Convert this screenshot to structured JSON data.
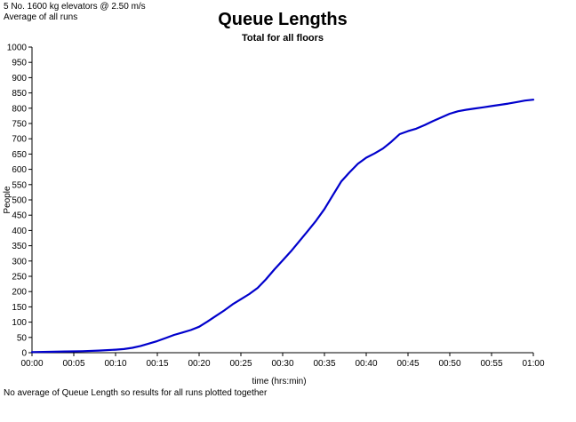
{
  "header": {
    "note_line1": "5 No. 1600 kg elevators @ 2.50 m/s",
    "note_line2": "Average of all runs"
  },
  "footer": {
    "note": "No average of Queue Length so results for all runs plotted together"
  },
  "chart_data": {
    "type": "line",
    "title": "Queue Lengths",
    "subtitle": "Total for all floors",
    "xlabel": "time (hrs:min)",
    "ylabel": "People",
    "xlim": [
      0,
      60
    ],
    "ylim": [
      0,
      1000
    ],
    "grid": false,
    "legend": "none",
    "x_ticks": [
      {
        "value": 0,
        "label": "00:00"
      },
      {
        "value": 5,
        "label": "00:05"
      },
      {
        "value": 10,
        "label": "00:10"
      },
      {
        "value": 15,
        "label": "00:15"
      },
      {
        "value": 20,
        "label": "00:20"
      },
      {
        "value": 25,
        "label": "00:25"
      },
      {
        "value": 30,
        "label": "00:30"
      },
      {
        "value": 35,
        "label": "00:35"
      },
      {
        "value": 40,
        "label": "00:40"
      },
      {
        "value": 45,
        "label": "00:45"
      },
      {
        "value": 50,
        "label": "00:50"
      },
      {
        "value": 55,
        "label": "00:55"
      },
      {
        "value": 60,
        "label": "01:00"
      }
    ],
    "y_ticks": [
      0,
      50,
      100,
      150,
      200,
      250,
      300,
      350,
      400,
      450,
      500,
      550,
      600,
      650,
      700,
      750,
      800,
      850,
      900,
      950,
      1000
    ],
    "series": [
      {
        "color": "#0000cc",
        "points": [
          [
            0,
            2
          ],
          [
            2,
            3
          ],
          [
            4,
            4
          ],
          [
            6,
            5
          ],
          [
            8,
            7
          ],
          [
            10,
            10
          ],
          [
            11,
            12
          ],
          [
            12,
            16
          ],
          [
            13,
            22
          ],
          [
            14,
            30
          ],
          [
            15,
            38
          ],
          [
            16,
            48
          ],
          [
            17,
            58
          ],
          [
            18,
            66
          ],
          [
            19,
            74
          ],
          [
            20,
            85
          ],
          [
            21,
            102
          ],
          [
            22,
            120
          ],
          [
            23,
            138
          ],
          [
            24,
            158
          ],
          [
            25,
            175
          ],
          [
            26,
            192
          ],
          [
            27,
            212
          ],
          [
            28,
            240
          ],
          [
            29,
            272
          ],
          [
            30,
            302
          ],
          [
            31,
            332
          ],
          [
            32,
            365
          ],
          [
            33,
            398
          ],
          [
            34,
            432
          ],
          [
            35,
            470
          ],
          [
            36,
            515
          ],
          [
            37,
            560
          ],
          [
            38,
            590
          ],
          [
            39,
            618
          ],
          [
            40,
            638
          ],
          [
            41,
            652
          ],
          [
            42,
            668
          ],
          [
            43,
            690
          ],
          [
            44,
            715
          ],
          [
            45,
            725
          ],
          [
            46,
            733
          ],
          [
            47,
            745
          ],
          [
            48,
            758
          ],
          [
            49,
            770
          ],
          [
            50,
            782
          ],
          [
            51,
            790
          ],
          [
            52,
            795
          ],
          [
            53,
            799
          ],
          [
            54,
            803
          ],
          [
            55,
            807
          ],
          [
            56,
            811
          ],
          [
            57,
            815
          ],
          [
            58,
            820
          ],
          [
            59,
            825
          ],
          [
            60,
            828
          ]
        ]
      }
    ]
  }
}
